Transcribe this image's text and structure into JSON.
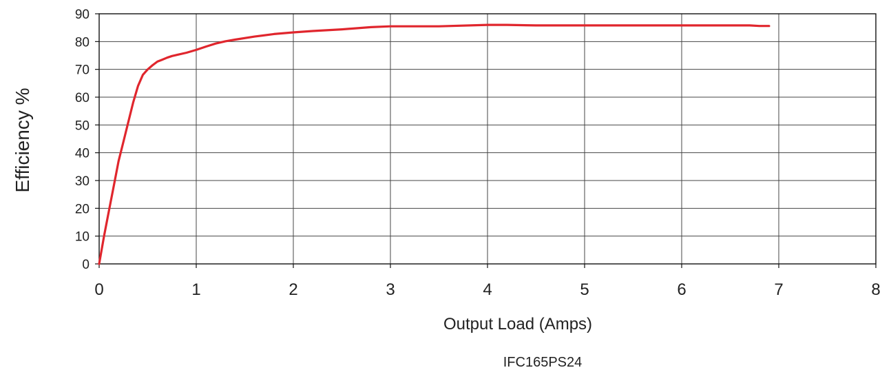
{
  "chart_data": {
    "type": "line",
    "xlabel": "Output Load (Amps)",
    "ylabel": "Efficiency %",
    "caption": "IFC165PS24",
    "xlim": [
      0,
      8
    ],
    "ylim": [
      0,
      90
    ],
    "xticks": [
      "0",
      "1",
      "2",
      "3",
      "4",
      "5",
      "6",
      "7",
      "8"
    ],
    "yticks": [
      "0",
      "10",
      "20",
      "30",
      "40",
      "50",
      "60",
      "70",
      "80",
      "90"
    ],
    "grid": true,
    "series_color": "#e0262d",
    "series": [
      {
        "x": [
          0,
          0.05,
          0.1,
          0.15,
          0.2,
          0.25,
          0.3,
          0.35,
          0.4,
          0.45,
          0.5,
          0.55,
          0.6,
          0.65,
          0.7,
          0.75,
          0.8,
          0.9,
          1.0,
          1.1,
          1.2,
          1.3,
          1.4,
          1.6,
          1.8,
          2.0,
          2.2,
          2.5,
          2.8,
          3.0,
          3.5,
          4.0,
          4.2,
          4.5,
          5.0,
          5.5,
          6.0,
          6.5,
          6.7,
          6.8,
          6.9
        ],
        "values": [
          0,
          10,
          19,
          28,
          37,
          44,
          51,
          58,
          64,
          68,
          70,
          71.5,
          72.8,
          73.5,
          74.2,
          74.8,
          75.2,
          76,
          77,
          78.2,
          79.3,
          80.1,
          80.7,
          81.8,
          82.7,
          83.3,
          83.8,
          84.4,
          85.2,
          85.5,
          85.5,
          86,
          86,
          85.8,
          85.8,
          85.8,
          85.8,
          85.8,
          85.8,
          85.6,
          85.6
        ]
      }
    ]
  }
}
